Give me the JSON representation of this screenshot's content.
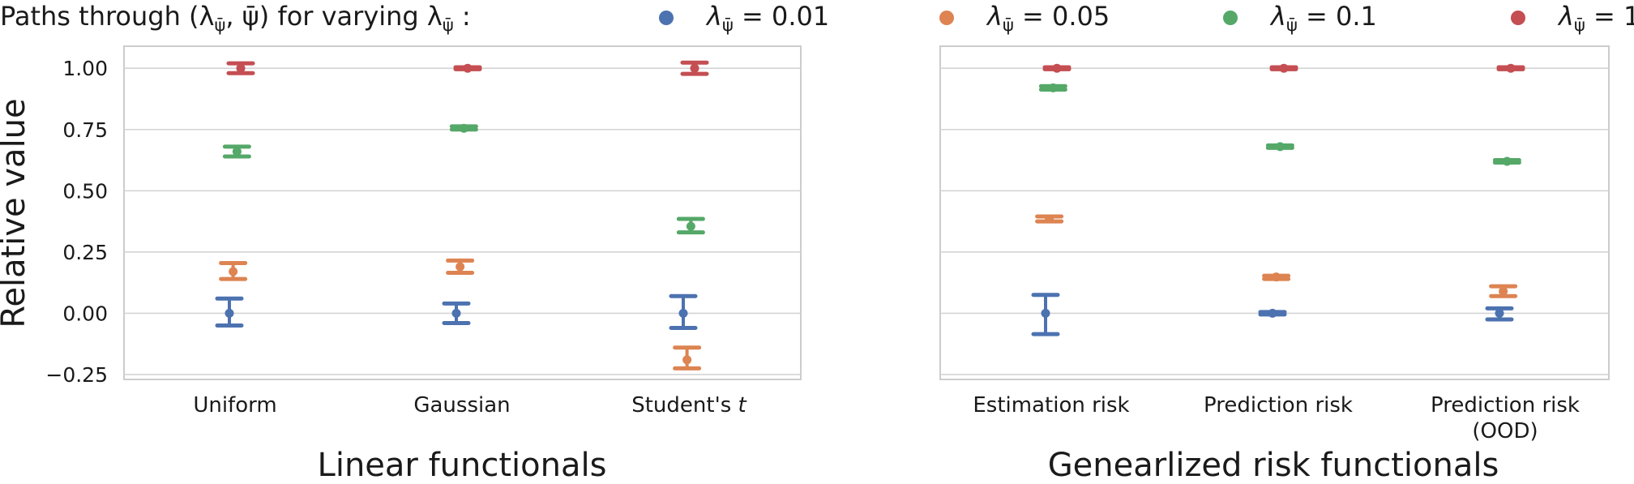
{
  "header": {
    "prefix": "Paths through (λ",
    "prefix_sub": "ψ̄",
    "mid": ", ψ̄) for varying λ",
    "mid_sub": "ψ̄",
    "suffix": " :"
  },
  "legend": [
    {
      "sym": "λ",
      "sub": "ψ̄",
      "value": " = 0.01",
      "color": "#4c72b0"
    },
    {
      "sym": "λ",
      "sub": "ψ̄",
      "value": " = 0.05",
      "color": "#dd8452"
    },
    {
      "sym": "λ",
      "sub": "ψ̄",
      "value": " = 0.1",
      "color": "#55a868"
    },
    {
      "sym": "λ",
      "sub": "ψ̄",
      "value": " = 1",
      "color": "#c44e52"
    }
  ],
  "chart_data": [
    {
      "type": "errorbar",
      "title": "Linear functionals",
      "ylabel": "Relative value",
      "ylim": [
        -0.27,
        1.09
      ],
      "yticks": [
        -0.25,
        0.0,
        0.25,
        0.5,
        0.75,
        1.0
      ],
      "ytick_labels": [
        "−0.25",
        "0.00",
        "0.25",
        "0.50",
        "0.75",
        "1.00"
      ],
      "grid": true,
      "categories": [
        {
          "label": "Uniform"
        },
        {
          "label": "Gaussian"
        },
        {
          "label": "Student's ",
          "italic": "t"
        }
      ],
      "series": [
        {
          "name": "λ=0.01",
          "color": "#4c72b0",
          "values": [
            0.0,
            0.0,
            0.0
          ],
          "lower": [
            -0.05,
            -0.04,
            -0.06
          ],
          "upper": [
            0.06,
            0.04,
            0.07
          ]
        },
        {
          "name": "λ=0.05",
          "color": "#dd8452",
          "values": [
            0.17,
            0.19,
            -0.19
          ],
          "lower": [
            0.14,
            0.165,
            -0.225
          ],
          "upper": [
            0.205,
            0.215,
            -0.14
          ]
        },
        {
          "name": "λ=0.1",
          "color": "#55a868",
          "values": [
            0.66,
            0.755,
            0.355
          ],
          "lower": [
            0.64,
            0.75,
            0.33
          ],
          "upper": [
            0.68,
            0.763,
            0.385
          ]
        },
        {
          "name": "λ=1",
          "color": "#c44e52",
          "values": [
            1.0,
            1.0,
            1.0
          ],
          "lower": [
            0.98,
            0.996,
            0.977
          ],
          "upper": [
            1.02,
            1.004,
            1.023
          ]
        }
      ]
    },
    {
      "type": "errorbar",
      "title": "Genearlized risk functionals",
      "ylim": [
        -0.27,
        1.09
      ],
      "grid": true,
      "categories": [
        {
          "label": "Estimation risk"
        },
        {
          "label": "Prediction risk"
        },
        {
          "label": "Prediction risk",
          "label2": "(OOD)"
        }
      ],
      "series": [
        {
          "name": "λ=0.01",
          "color": "#4c72b0",
          "values": [
            0.0,
            0.0,
            0.0
          ],
          "lower": [
            -0.085,
            -0.005,
            -0.025
          ],
          "upper": [
            0.075,
            0.005,
            0.02
          ]
        },
        {
          "name": "λ=0.05",
          "color": "#dd8452",
          "values": [
            0.385,
            0.148,
            0.09
          ],
          "lower": [
            0.375,
            0.14,
            0.07
          ],
          "upper": [
            0.395,
            0.153,
            0.11
          ]
        },
        {
          "name": "λ=0.1",
          "color": "#55a868",
          "values": [
            0.92,
            0.68,
            0.62
          ],
          "lower": [
            0.913,
            0.675,
            0.615
          ],
          "upper": [
            0.927,
            0.685,
            0.625
          ]
        },
        {
          "name": "λ=1",
          "color": "#c44e52",
          "values": [
            1.0,
            1.0,
            1.0
          ],
          "lower": [
            0.996,
            0.996,
            0.996
          ],
          "upper": [
            1.004,
            1.004,
            1.004
          ]
        }
      ]
    }
  ]
}
